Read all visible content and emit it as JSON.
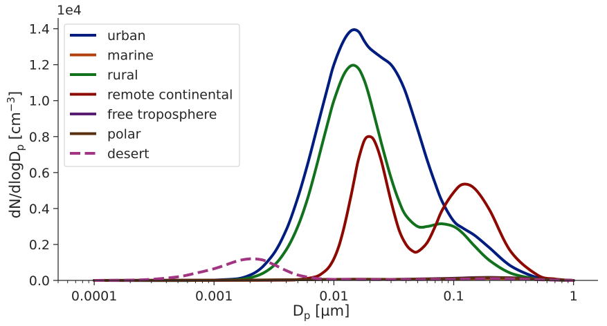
{
  "chart_data": {
    "type": "line",
    "xscale": "log",
    "xlim": [
      5e-05,
      1.6
    ],
    "ylim": [
      0,
      14600
    ],
    "xlabel": {
      "main": "D",
      "sub": "p",
      "unit": " [µm]"
    },
    "ylabel": {
      "main": "dN/dlogD",
      "sub": "p",
      "unit": " [cm",
      "sup": "−3",
      "end": "]"
    },
    "y_offset_label": "1e4",
    "x_ticks": [
      {
        "value": 0.0001,
        "label": "0.0001"
      },
      {
        "value": 0.001,
        "label": "0.001"
      },
      {
        "value": 0.01,
        "label": "0.01"
      },
      {
        "value": 0.1,
        "label": "0.1"
      },
      {
        "value": 1,
        "label": "1"
      }
    ],
    "y_ticks": [
      {
        "value": 0,
        "label": "0.0"
      },
      {
        "value": 2000,
        "label": "0.2"
      },
      {
        "value": 4000,
        "label": "0.4"
      },
      {
        "value": 6000,
        "label": "0.6"
      },
      {
        "value": 8000,
        "label": "0.8"
      },
      {
        "value": 10000,
        "label": "1.0"
      },
      {
        "value": 12000,
        "label": "1.2"
      },
      {
        "value": 14000,
        "label": "1.4"
      }
    ],
    "grid": false,
    "legend_position": "top-left",
    "series": [
      {
        "name": "urban",
        "color": "#001c7f",
        "dash": "solid",
        "x": [
          0.0001,
          0.001,
          0.002,
          0.003,
          0.004,
          0.005,
          0.006,
          0.007,
          0.008,
          0.009,
          0.01,
          0.012,
          0.014,
          0.016,
          0.018,
          0.02,
          0.025,
          0.03,
          0.035,
          0.04,
          0.05,
          0.06,
          0.07,
          0.08,
          0.1,
          0.12,
          0.15,
          0.2,
          0.3,
          0.5,
          0.7,
          1
        ],
        "y": [
          0,
          20,
          300,
          1300,
          2800,
          4600,
          6400,
          8100,
          9600,
          10900,
          12000,
          13300,
          13900,
          13850,
          13300,
          12900,
          12400,
          12000,
          11300,
          10400,
          8400,
          6700,
          5400,
          4400,
          3300,
          2900,
          2500,
          1800,
          800,
          150,
          40,
          0
        ]
      },
      {
        "name": "marine",
        "color": "#b1400d",
        "dash": "solid",
        "x": [
          0.0001,
          0.002,
          0.005,
          0.01,
          0.03,
          0.05,
          0.1,
          0.2,
          0.3,
          0.5,
          1
        ],
        "y": [
          0,
          10,
          40,
          60,
          60,
          70,
          90,
          110,
          100,
          60,
          0
        ]
      },
      {
        "name": "rural",
        "color": "#12711c",
        "dash": "solid",
        "x": [
          0.0001,
          0.001,
          0.002,
          0.003,
          0.004,
          0.005,
          0.006,
          0.007,
          0.008,
          0.009,
          0.01,
          0.012,
          0.014,
          0.016,
          0.018,
          0.02,
          0.025,
          0.03,
          0.035,
          0.04,
          0.05,
          0.06,
          0.07,
          0.08,
          0.1,
          0.12,
          0.15,
          0.2,
          0.3,
          0.5,
          0.7,
          1
        ],
        "y": [
          0,
          10,
          150,
          700,
          1700,
          3000,
          4500,
          6100,
          7600,
          8900,
          10000,
          11400,
          11950,
          11800,
          11100,
          10100,
          7600,
          5700,
          4400,
          3600,
          3000,
          3000,
          3100,
          3150,
          3000,
          2600,
          1900,
          1100,
          400,
          80,
          20,
          0
        ]
      },
      {
        "name": "remote continental",
        "color": "#8c0800",
        "dash": "solid",
        "x": [
          0.0001,
          0.003,
          0.005,
          0.007,
          0.008,
          0.009,
          0.01,
          0.011,
          0.012,
          0.013,
          0.014,
          0.015,
          0.016,
          0.018,
          0.02,
          0.022,
          0.025,
          0.03,
          0.035,
          0.04,
          0.045,
          0.05,
          0.06,
          0.07,
          0.08,
          0.1,
          0.12,
          0.15,
          0.2,
          0.3,
          0.5,
          0.7,
          1
        ],
        "y": [
          0,
          10,
          50,
          200,
          400,
          700,
          1200,
          1900,
          2800,
          3800,
          4800,
          5800,
          6700,
          7800,
          8000,
          7700,
          6600,
          4400,
          2800,
          2000,
          1650,
          1600,
          2100,
          3000,
          3900,
          4900,
          5350,
          5100,
          3900,
          1600,
          300,
          80,
          0
        ]
      },
      {
        "name": "free troposphere",
        "color": "#591e71",
        "dash": "solid",
        "x": [
          0.0001,
          0.002,
          0.005,
          0.01,
          0.03,
          0.05,
          0.1,
          0.15,
          0.2,
          0.3,
          0.5,
          1
        ],
        "y": [
          0,
          20,
          40,
          60,
          60,
          80,
          120,
          160,
          170,
          150,
          80,
          0
        ]
      },
      {
        "name": "polar",
        "color": "#592f0d",
        "dash": "solid",
        "x": [
          0.0001,
          0.002,
          0.005,
          0.01,
          0.03,
          0.05,
          0.1,
          0.15,
          0.2,
          0.3,
          0.5,
          1
        ],
        "y": [
          0,
          20,
          40,
          60,
          60,
          70,
          100,
          140,
          160,
          140,
          70,
          0
        ]
      },
      {
        "name": "desert",
        "color": "#a23582",
        "dash": "dashed",
        "x": [
          0.0001,
          0.0002,
          0.0003,
          0.0005,
          0.0007,
          0.001,
          0.0013,
          0.0016,
          0.002,
          0.0025,
          0.003,
          0.004,
          0.005,
          0.007,
          0.01,
          0.02,
          0.05,
          0.1,
          0.2,
          0.3,
          0.5,
          1
        ],
        "y": [
          0,
          20,
          60,
          200,
          400,
          650,
          900,
          1100,
          1200,
          1150,
          950,
          550,
          300,
          120,
          60,
          50,
          50,
          60,
          100,
          90,
          40,
          0
        ]
      }
    ]
  }
}
